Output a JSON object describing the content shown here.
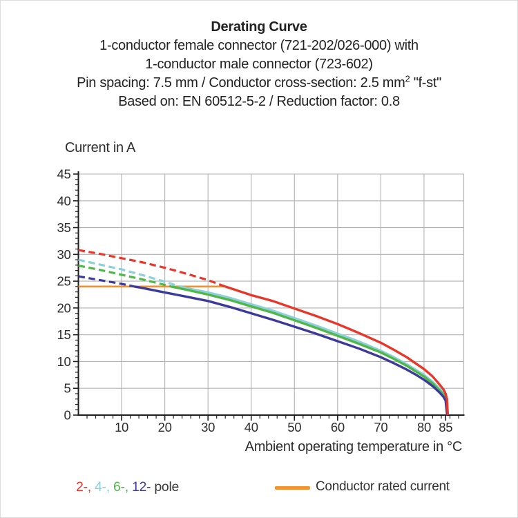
{
  "header": {
    "title": "Derating Curve",
    "subtitle_line1": "1-conductor female connector (721-202/026-000) with",
    "subtitle_line2": "1-conductor male connector (723-602)",
    "spec_line": {
      "pre": "Pin spacing: 7.5 mm / Conductor cross-section: 2.5 mm",
      "sup": "2",
      "post": " \"f-st\""
    },
    "basis_line": "Based on: EN 60512-5-2 / Reduction factor: 0.8"
  },
  "chart_data": {
    "type": "line",
    "ylabel": "Current in A",
    "xlabel": "Ambient operating temperature in °C",
    "xlim": [
      0,
      89.2
    ],
    "ylim": [
      0,
      45
    ],
    "x_major_ticks": [
      10,
      20,
      30,
      40,
      50,
      60,
      70,
      80,
      85
    ],
    "x_minor_step": 2,
    "y_major_ticks": [
      0,
      5,
      10,
      15,
      20,
      25,
      30,
      35,
      40,
      45
    ],
    "y_minor_step": 1,
    "x_gridlines": [
      10,
      20,
      30,
      40,
      50,
      60,
      70,
      80
    ],
    "y_gridlines": [
      5,
      10,
      15,
      20,
      25,
      30,
      35,
      40,
      45
    ],
    "grid": true,
    "grid_color": "#b1b1b1",
    "axis_color": "#1f1f1f",
    "series": [
      {
        "name": "4-pole",
        "color": "#8dd0da",
        "dashed": [
          [
            0,
            29.0
          ],
          [
            5,
            28.1
          ],
          [
            10,
            27.2
          ],
          [
            15,
            26.1
          ],
          [
            20,
            24.9
          ],
          [
            23.5,
            24.0
          ]
        ],
        "solid": [
          [
            23.5,
            24.0
          ],
          [
            25,
            23.7
          ],
          [
            30,
            22.9
          ],
          [
            35,
            21.9
          ],
          [
            40,
            20.7
          ],
          [
            45,
            19.5
          ],
          [
            50,
            18.1
          ],
          [
            55,
            16.7
          ],
          [
            60,
            15.2
          ],
          [
            65,
            13.7
          ],
          [
            70,
            12.0
          ],
          [
            73,
            10.8
          ],
          [
            76,
            9.5
          ],
          [
            78,
            8.5
          ],
          [
            80,
            7.5
          ],
          [
            82,
            6.2
          ],
          [
            83.5,
            5.0
          ],
          [
            84.5,
            4.1
          ],
          [
            85,
            3.4
          ],
          [
            85.3,
            2.4
          ],
          [
            85.45,
            0
          ]
        ]
      },
      {
        "name": "6-pole",
        "color": "#4eb748",
        "dashed": [
          [
            0,
            27.9
          ],
          [
            5,
            27.1
          ],
          [
            10,
            26.2
          ],
          [
            15,
            25.3
          ],
          [
            20,
            24.3
          ],
          [
            21.5,
            24.0
          ]
        ],
        "solid": [
          [
            21.5,
            24.0
          ],
          [
            25,
            23.4
          ],
          [
            30,
            22.5
          ],
          [
            35,
            21.5
          ],
          [
            40,
            20.3
          ],
          [
            45,
            19.1
          ],
          [
            50,
            17.7
          ],
          [
            55,
            16.3
          ],
          [
            60,
            14.8
          ],
          [
            65,
            13.3
          ],
          [
            70,
            11.7
          ],
          [
            73,
            10.5
          ],
          [
            76,
            9.2
          ],
          [
            78,
            8.2
          ],
          [
            80,
            7.2
          ],
          [
            82,
            5.9
          ],
          [
            83.5,
            4.7
          ],
          [
            84.5,
            3.8
          ],
          [
            85,
            3.1
          ],
          [
            85.3,
            2.1
          ],
          [
            85.4,
            0
          ]
        ]
      },
      {
        "name": "12-pole",
        "color": "#3b3a9a",
        "dashed": [
          [
            0,
            25.9
          ],
          [
            5,
            25.2
          ],
          [
            10,
            24.5
          ],
          [
            13,
            24.0
          ]
        ],
        "solid": [
          [
            13,
            24.0
          ],
          [
            15,
            23.7
          ],
          [
            20,
            22.9
          ],
          [
            25,
            22.1
          ],
          [
            30,
            21.3
          ],
          [
            35,
            20.2
          ],
          [
            40,
            19.0
          ],
          [
            45,
            17.8
          ],
          [
            50,
            16.5
          ],
          [
            55,
            15.2
          ],
          [
            60,
            13.8
          ],
          [
            65,
            12.4
          ],
          [
            70,
            10.8
          ],
          [
            73,
            9.7
          ],
          [
            76,
            8.5
          ],
          [
            78,
            7.6
          ],
          [
            80,
            6.6
          ],
          [
            82,
            5.4
          ],
          [
            83.5,
            4.3
          ],
          [
            84.5,
            3.4
          ],
          [
            85,
            2.7
          ],
          [
            85.35,
            0
          ]
        ]
      },
      {
        "name": "2-pole",
        "color": "#e6372a",
        "dashed": [
          [
            0,
            30.8
          ],
          [
            5,
            30.1
          ],
          [
            10,
            29.3
          ],
          [
            15,
            28.5
          ],
          [
            20,
            27.5
          ],
          [
            25,
            26.4
          ],
          [
            30,
            25.2
          ],
          [
            34,
            24.0
          ]
        ],
        "solid": [
          [
            34,
            24.0
          ],
          [
            40,
            22.4
          ],
          [
            45,
            21.3
          ],
          [
            50,
            19.9
          ],
          [
            55,
            18.5
          ],
          [
            60,
            17.0
          ],
          [
            65,
            15.3
          ],
          [
            70,
            13.5
          ],
          [
            73,
            12.2
          ],
          [
            76,
            10.8
          ],
          [
            78,
            9.7
          ],
          [
            80,
            8.6
          ],
          [
            82,
            7.2
          ],
          [
            83.5,
            5.8
          ],
          [
            84.5,
            4.8
          ],
          [
            85,
            4.0
          ],
          [
            85.3,
            3.0
          ],
          [
            85.5,
            0
          ]
        ]
      }
    ],
    "rated_current": {
      "label": "Conductor rated current",
      "color": "#f2912d",
      "value": 24,
      "x_start": 0,
      "x_end": 33.8
    }
  },
  "legend": {
    "pole_items": [
      {
        "label": "2-",
        "color": "#e6372a"
      },
      {
        "label": "4-",
        "color": "#8dd0da"
      },
      {
        "label": "6-",
        "color": "#4eb748"
      },
      {
        "label": "12-",
        "color": "#3b3a9a"
      }
    ],
    "separator": ", ",
    "suffix": " pole",
    "rated_label": "Conductor rated current"
  }
}
